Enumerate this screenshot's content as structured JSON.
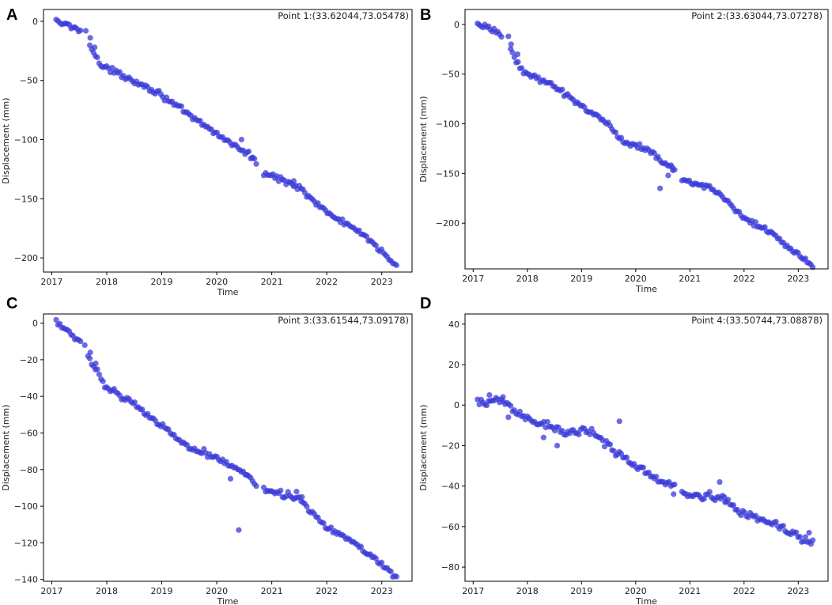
{
  "colors": {
    "marker": "#3a3ad8",
    "frame": "#000000",
    "background": "#ffffff"
  },
  "chart_data": [
    {
      "type": "scatter",
      "panel": "A",
      "title": "Point 1:(33.62044,73.05478)",
      "xlabel": "Time",
      "ylabel": "Displacement (mm)",
      "xlim": [
        2016.85,
        2023.55
      ],
      "ylim": [
        -212,
        10
      ],
      "xticks": [
        2017,
        2018,
        2019,
        2020,
        2021,
        2022,
        2023
      ],
      "yticks": [
        0,
        -50,
        -100,
        -150,
        -200
      ],
      "trend": [
        [
          2017.08,
          0
        ],
        [
          2017.45,
          -6
        ],
        [
          2017.62,
          -10
        ],
        [
          2017.78,
          -28
        ],
        [
          2017.9,
          -38
        ],
        [
          2018.5,
          -50
        ],
        [
          2019.0,
          -62
        ],
        [
          2019.5,
          -80
        ],
        [
          2020.0,
          -95
        ],
        [
          2020.55,
          -112
        ],
        [
          2020.75,
          -120
        ],
        [
          2020.85,
          -128
        ],
        [
          2021.5,
          -140
        ],
        [
          2022.0,
          -162
        ],
        [
          2022.5,
          -175
        ],
        [
          2023.0,
          -195
        ],
        [
          2023.3,
          -207
        ]
      ],
      "noise": 2.2,
      "outliers": [
        [
          2017.62,
          -8
        ],
        [
          2017.7,
          -14
        ],
        [
          2017.78,
          -22
        ],
        [
          2020.45,
          -100
        ],
        [
          2020.65,
          -115
        ],
        [
          2021.4,
          -135
        ]
      ],
      "gaps": [
        [
          2017.55,
          2017.68
        ],
        [
          2020.75,
          2020.84
        ]
      ]
    },
    {
      "type": "scatter",
      "panel": "B",
      "title": "Point 2:(33.63044,73.07278)",
      "xlabel": "Time",
      "ylabel": "Displacement (mm)",
      "xlim": [
        2016.85,
        2023.55
      ],
      "ylim": [
        -246,
        15
      ],
      "xticks": [
        2017,
        2018,
        2019,
        2020,
        2021,
        2022,
        2023
      ],
      "yticks": [
        0,
        -50,
        -100,
        -150,
        -200
      ],
      "trend": [
        [
          2017.08,
          0
        ],
        [
          2017.45,
          -8
        ],
        [
          2017.62,
          -14
        ],
        [
          2017.78,
          -35
        ],
        [
          2017.92,
          -48
        ],
        [
          2018.5,
          -62
        ],
        [
          2019.0,
          -82
        ],
        [
          2019.5,
          -100
        ],
        [
          2019.75,
          -118
        ],
        [
          2020.2,
          -125
        ],
        [
          2020.6,
          -142
        ],
        [
          2020.72,
          -146
        ],
        [
          2020.85,
          -155
        ],
        [
          2021.5,
          -168
        ],
        [
          2022.0,
          -195
        ],
        [
          2022.5,
          -210
        ],
        [
          2023.0,
          -232
        ],
        [
          2023.3,
          -245
        ]
      ],
      "noise": 2.4,
      "outliers": [
        [
          2017.65,
          -12
        ],
        [
          2017.7,
          -20
        ],
        [
          2017.82,
          -30
        ],
        [
          2020.45,
          -165
        ],
        [
          2020.6,
          -152
        ],
        [
          2020.68,
          -144
        ]
      ],
      "gaps": [
        [
          2017.55,
          2017.68
        ],
        [
          2020.75,
          2020.84
        ]
      ]
    },
    {
      "type": "scatter",
      "panel": "C",
      "title": "Point 3:(33.61544,73.09178)",
      "xlabel": "Time",
      "ylabel": "Displacement (mm)",
      "xlim": [
        2016.85,
        2023.55
      ],
      "ylim": [
        -141,
        5
      ],
      "xticks": [
        2017,
        2018,
        2019,
        2020,
        2021,
        2022,
        2023
      ],
      "yticks": [
        0,
        -20,
        -40,
        -60,
        -80,
        -100,
        -120,
        -140
      ],
      "trend": [
        [
          2017.08,
          0
        ],
        [
          2017.45,
          -8
        ],
        [
          2017.62,
          -14
        ],
        [
          2017.78,
          -24
        ],
        [
          2017.95,
          -34
        ],
        [
          2018.5,
          -44
        ],
        [
          2019.0,
          -56
        ],
        [
          2019.5,
          -68
        ],
        [
          2020.0,
          -73
        ],
        [
          2020.5,
          -82
        ],
        [
          2020.72,
          -88
        ],
        [
          2020.85,
          -90
        ],
        [
          2021.5,
          -96
        ],
        [
          2022.0,
          -112
        ],
        [
          2022.5,
          -120
        ],
        [
          2023.0,
          -132
        ],
        [
          2023.3,
          -139
        ]
      ],
      "noise": 1.5,
      "outliers": [
        [
          2017.6,
          -12
        ],
        [
          2017.7,
          -16
        ],
        [
          2017.8,
          -22
        ],
        [
          2020.25,
          -85
        ],
        [
          2020.4,
          -113
        ],
        [
          2020.55,
          -83
        ],
        [
          2021.45,
          -92
        ],
        [
          2021.55,
          -95
        ]
      ],
      "gaps": [
        [
          2017.55,
          2017.65
        ],
        [
          2020.75,
          2020.84
        ]
      ]
    },
    {
      "type": "scatter",
      "panel": "D",
      "title": "Point 4:(33.50744,73.08878)",
      "xlabel": "Time",
      "ylabel": "Displacement (mm)",
      "xlim": [
        2016.85,
        2023.55
      ],
      "ylim": [
        -87,
        45
      ],
      "xticks": [
        2017,
        2018,
        2019,
        2020,
        2021,
        2022,
        2023
      ],
      "yticks": [
        40,
        20,
        0,
        -20,
        -40,
        -60,
        -80
      ],
      "trend": [
        [
          2017.08,
          1
        ],
        [
          2017.45,
          3
        ],
        [
          2017.8,
          -4
        ],
        [
          2018.3,
          -9
        ],
        [
          2018.7,
          -14
        ],
        [
          2019.0,
          -12
        ],
        [
          2019.3,
          -15
        ],
        [
          2019.7,
          -25
        ],
        [
          2020.0,
          -30
        ],
        [
          2020.5,
          -38
        ],
        [
          2020.75,
          -40
        ],
        [
          2020.85,
          -44
        ],
        [
          2021.3,
          -45
        ],
        [
          2021.6,
          -46
        ],
        [
          2022.0,
          -54
        ],
        [
          2022.5,
          -58
        ],
        [
          2023.0,
          -65
        ],
        [
          2023.3,
          -68
        ]
      ],
      "noise": 2.0,
      "outliers": [
        [
          2017.3,
          5
        ],
        [
          2017.55,
          4
        ],
        [
          2017.65,
          -6
        ],
        [
          2018.3,
          -16
        ],
        [
          2018.55,
          -20
        ],
        [
          2019.7,
          -8
        ],
        [
          2020.7,
          -44
        ],
        [
          2021.55,
          -38
        ],
        [
          2021.65,
          -48
        ],
        [
          2023.2,
          -63
        ]
      ],
      "gaps": [
        [
          2020.75,
          2020.84
        ]
      ]
    }
  ]
}
